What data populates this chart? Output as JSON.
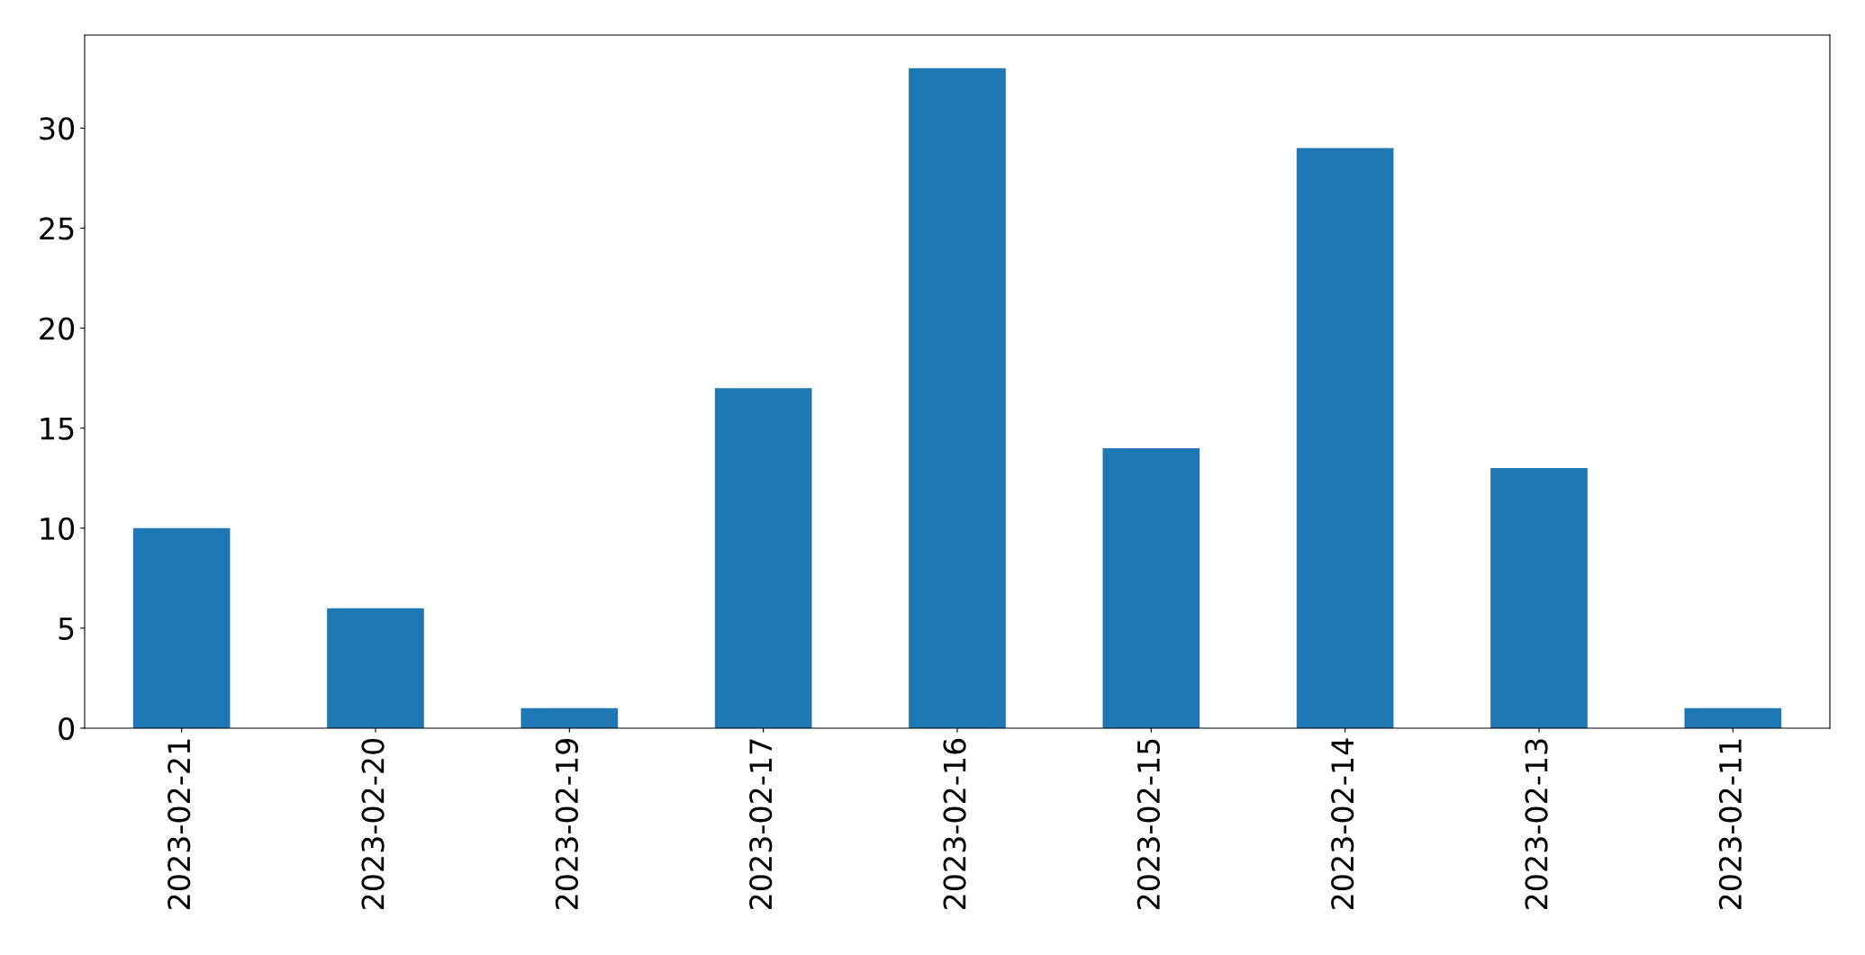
{
  "chart_data": {
    "type": "bar",
    "categories": [
      "2023-02-21",
      "2023-02-20",
      "2023-02-19",
      "2023-02-17",
      "2023-02-16",
      "2023-02-15",
      "2023-02-14",
      "2023-02-13",
      "2023-02-11"
    ],
    "values": [
      10,
      6,
      1,
      17,
      33,
      14,
      29,
      13,
      1
    ],
    "color": "#1f77b4",
    "ylim": [
      0,
      34.65
    ],
    "yticks": [
      0,
      5,
      10,
      15,
      20,
      25,
      30
    ],
    "grid": false,
    "legend": false
  }
}
